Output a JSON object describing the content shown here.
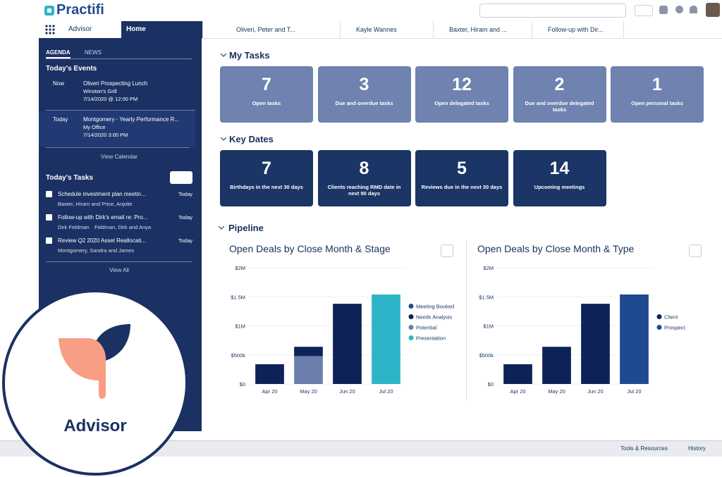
{
  "header": {
    "logo": "Practifi"
  },
  "nav": {
    "app": "Advisor",
    "tabs": [
      "Home",
      "Oliveri, Peter and T...",
      "Kayle Wannes",
      "Baxter, Hiram and ...",
      "Follow-up with Dir..."
    ]
  },
  "sidebar": {
    "tabs": [
      "AGENDA",
      "NEWS"
    ],
    "events_title": "Today's Events",
    "events": [
      {
        "when": "Now",
        "title": "Oliveri Prospecting Lunch",
        "place": "Winston's Grill",
        "time": "7/14/2020 @ 12:00 PM"
      },
      {
        "when": "Today",
        "title": "Montgomery - Yearly Performance R...",
        "place": "My Office",
        "time": "7/14/2020 3:00 PM"
      }
    ],
    "view_calendar": "View Calendar",
    "tasks_title": "Today's Tasks",
    "tasks": [
      {
        "title": "Schedule investment plan meetin...",
        "people": [
          "Baxter, Hiram and Price, Anjolie"
        ],
        "due": "Today"
      },
      {
        "title": "Follow-up with Dirk's email re: Pro...",
        "people": [
          "Dirk Feldman",
          "Feldman, Dirk and Anya"
        ],
        "due": "Today"
      },
      {
        "title": "Review Q2 2020 Asset Reallocati...",
        "people": [
          "Montgomery, Sandra and James"
        ],
        "due": "Today"
      }
    ],
    "view_all": "View All"
  },
  "my_tasks": {
    "title": "My Tasks",
    "cards": [
      {
        "value": 7,
        "label": "Open tasks"
      },
      {
        "value": 3,
        "label": "Due and overdue tasks"
      },
      {
        "value": 12,
        "label": "Open delegated tasks"
      },
      {
        "value": 2,
        "label": "Due and overdue delegated tasks"
      },
      {
        "value": 1,
        "label": "Open personal tasks"
      }
    ]
  },
  "key_dates": {
    "title": "Key Dates",
    "cards": [
      {
        "value": 7,
        "label": "Birthdays in the next 30 days"
      },
      {
        "value": 8,
        "label": "Clients reaching RMD date in next 90 days"
      },
      {
        "value": 5,
        "label": "Reviews due in the next 30 days"
      },
      {
        "value": 14,
        "label": "Upcoming meetings"
      }
    ]
  },
  "pipeline": {
    "title": "Pipeline",
    "charts": [
      {
        "type": "stacked_bar",
        "title": "Open Deals by Close Month & Stage",
        "categories": [
          "Apr 20",
          "May 20",
          "Jun 20",
          "Jul 20"
        ],
        "series": [
          {
            "name": "Meeting Booked",
            "color": "#1f4a8f",
            "values": [
              null,
              null,
              null,
              null
            ]
          },
          {
            "name": "Needs Analysis",
            "color": "#0d2357",
            "values": [
              340000,
              160000,
              1380000,
              null
            ]
          },
          {
            "name": "Potential",
            "color": "#6b7eac",
            "values": [
              null,
              480000,
              null,
              null
            ]
          },
          {
            "name": "Presentation",
            "color": "#2cb5c8",
            "values": [
              null,
              null,
              null,
              1540000
            ]
          }
        ],
        "ylim": [
          0,
          2000000
        ],
        "yticks": [
          {
            "value": 0,
            "label": "$0"
          },
          {
            "value": 500000,
            "label": "$500k"
          },
          {
            "value": 1000000,
            "label": "$1M"
          },
          {
            "value": 1500000,
            "label": "$1.5M"
          },
          {
            "value": 2000000,
            "label": "$2M"
          }
        ],
        "grid": true
      },
      {
        "type": "stacked_bar",
        "title": "Open Deals by Close Month & Type",
        "categories": [
          "Apr 20",
          "May 20",
          "Jun 20",
          "Jul 20"
        ],
        "series": [
          {
            "name": "Client",
            "color": "#0d2357",
            "values": [
              340000,
              640000,
              1380000,
              null
            ]
          },
          {
            "name": "Prospect",
            "color": "#1f4a8f",
            "values": [
              null,
              null,
              null,
              1540000
            ]
          }
        ],
        "ylim": [
          0,
          2000000
        ],
        "yticks": [
          {
            "value": 0,
            "label": "$0"
          },
          {
            "value": 500000,
            "label": "$500k"
          },
          {
            "value": 1000000,
            "label": "$1M"
          },
          {
            "value": 1500000,
            "label": "$1.5M"
          },
          {
            "value": 2000000,
            "label": "$2M"
          }
        ],
        "grid": true
      }
    ]
  },
  "badge": {
    "label": "Advisor"
  },
  "footer": {
    "links": [
      "Tools & Resources",
      "History"
    ]
  }
}
